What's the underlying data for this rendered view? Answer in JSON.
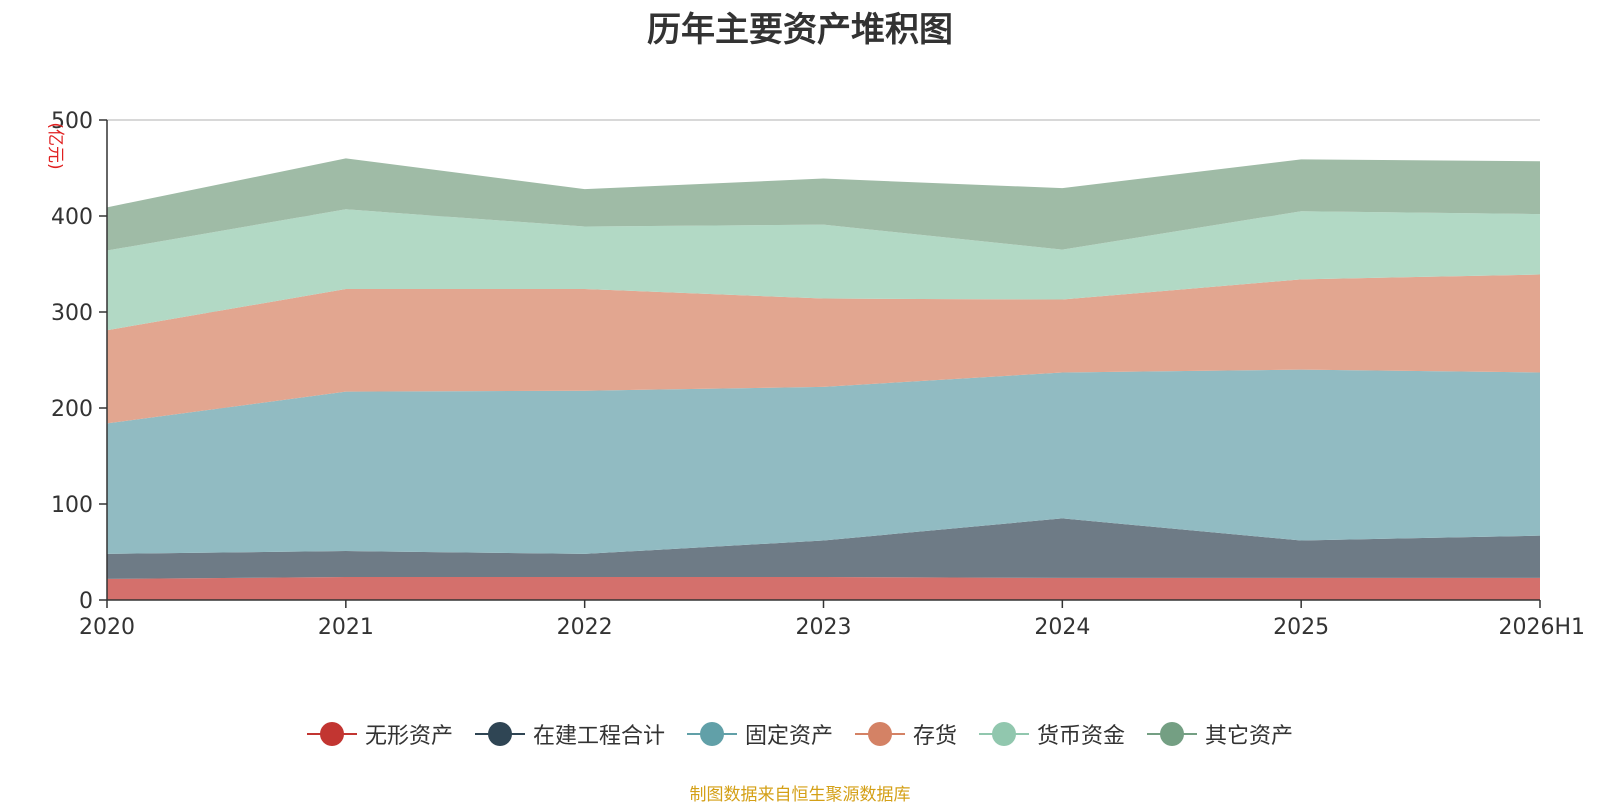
{
  "chart_data": {
    "type": "area",
    "stacked": true,
    "title": "历年主要资产堆积图",
    "ylabel": "(亿元)",
    "ylim": [
      0,
      500
    ],
    "yticks": [
      0,
      100,
      200,
      300,
      400,
      500
    ],
    "categories": [
      "2020",
      "2021",
      "2022",
      "2023",
      "2024",
      "2025",
      "2026H1"
    ],
    "series": [
      {
        "name": "无形资产",
        "color": "#c23531",
        "fill": "#d4706c",
        "values": [
          22,
          24,
          24,
          24,
          23,
          23,
          23
        ]
      },
      {
        "name": "在建工程合计",
        "color": "#2f4554",
        "fill": "#6e7b86",
        "values": [
          26,
          27,
          24,
          38,
          62,
          39,
          44
        ]
      },
      {
        "name": "固定资产",
        "color": "#61a0a8",
        "fill": "#91bbc2",
        "values": [
          136,
          166,
          170,
          160,
          152,
          178,
          170
        ]
      },
      {
        "name": "存货",
        "color": "#d48265",
        "fill": "#e2a690",
        "values": [
          97,
          107,
          106,
          92,
          76,
          94,
          102
        ]
      },
      {
        "name": "货币资金",
        "color": "#91c7ae",
        "fill": "#b2d9c5",
        "values": [
          83,
          83,
          65,
          77,
          52,
          71,
          63
        ]
      },
      {
        "name": "其它资产",
        "color": "#749f83",
        "fill": "#9fbba6",
        "values": [
          45,
          53,
          39,
          48,
          64,
          54,
          55
        ]
      }
    ],
    "grid": true,
    "legend_position": "bottom"
  },
  "source_note": "制图数据来自恒生聚源数据库"
}
